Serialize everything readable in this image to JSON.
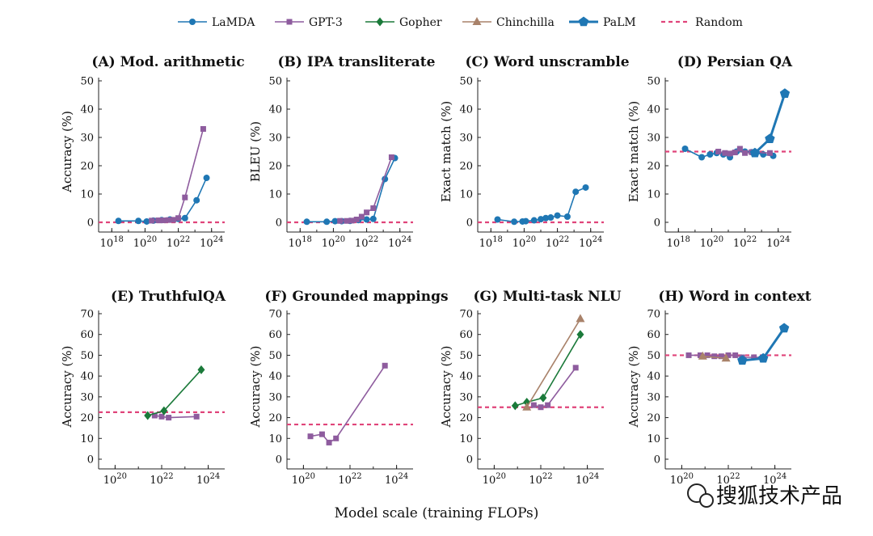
{
  "legend": [
    {
      "name": "LaMDA",
      "color": "#1f77b4",
      "marker": "circle"
    },
    {
      "name": "GPT-3",
      "color": "#8e5c9e",
      "marker": "square"
    },
    {
      "name": "Gopher",
      "color": "#1b7a3a",
      "marker": "diamond"
    },
    {
      "name": "Chinchilla",
      "color": "#a9826a",
      "marker": "triangle"
    },
    {
      "name": "PaLM",
      "color": "#1f77b4",
      "marker": "pentagon"
    },
    {
      "name": "Random",
      "color": "#e0447a",
      "marker": "dashed-line"
    }
  ],
  "xlabel": "Model scale (training FLOPs)",
  "watermark": "搜狐技术产品",
  "chart_data": [
    {
      "id": "A",
      "type": "line",
      "title": "(A) Mod. arithmetic",
      "ylabel": "Accuracy (%)",
      "ylim": [
        0,
        50
      ],
      "yticks": [
        0,
        10,
        20,
        30,
        40,
        50
      ],
      "xlim_log10": [
        17.5,
        24.5
      ],
      "xticks_log10": [
        18,
        20,
        22,
        24
      ],
      "random": 0,
      "series": [
        {
          "name": "LaMDA",
          "x": [
            18.4,
            19.6,
            20.1,
            20.5,
            21,
            21.5,
            22,
            22.4,
            23.1,
            23.7
          ],
          "y": [
            0.5,
            0.5,
            0.3,
            0.6,
            0.8,
            1,
            1.2,
            1.5,
            7.8,
            15.7
          ]
        },
        {
          "name": "GPT-3",
          "x": [
            20.4,
            20.8,
            21.1,
            21.4,
            21.7,
            22,
            22.4,
            23.5
          ],
          "y": [
            0.6,
            0.7,
            0.7,
            0.8,
            0.9,
            1.5,
            8.8,
            33
          ]
        }
      ]
    },
    {
      "id": "B",
      "type": "line",
      "title": "(B) IPA transliterate",
      "ylabel": "BLEU (%)",
      "ylim": [
        0,
        50
      ],
      "yticks": [
        0,
        10,
        20,
        30,
        40,
        50
      ],
      "xlim_log10": [
        17.5,
        24.5
      ],
      "xticks_log10": [
        18,
        20,
        22,
        24
      ],
      "random": 0,
      "series": [
        {
          "name": "LaMDA",
          "x": [
            18.4,
            19.6,
            20.1,
            20.5,
            21,
            21.5,
            22,
            22.4,
            23.1,
            23.7
          ],
          "y": [
            0.2,
            0.2,
            0.4,
            0.4,
            0.5,
            0.8,
            1,
            1.2,
            15.3,
            22.7
          ]
        },
        {
          "name": "GPT-3",
          "x": [
            20.4,
            20.8,
            21.1,
            21.4,
            21.7,
            22,
            22.4,
            23.5
          ],
          "y": [
            0.5,
            0.5,
            0.6,
            1,
            2,
            3.5,
            5,
            23
          ]
        }
      ]
    },
    {
      "id": "C",
      "type": "line",
      "title": "(C) Word unscramble",
      "ylabel": "Exact match (%)",
      "ylim": [
        0,
        50
      ],
      "yticks": [
        0,
        10,
        20,
        30,
        40,
        50
      ],
      "xlim_log10": [
        17.5,
        24.5
      ],
      "xticks_log10": [
        18,
        20,
        22,
        24
      ],
      "random": 0,
      "series": [
        {
          "name": "LaMDA",
          "x": [
            18.4,
            19.4,
            19.9,
            20.1,
            20.6,
            21,
            21.3,
            21.6,
            22,
            22.6,
            23.1,
            23.7
          ],
          "y": [
            1,
            0.2,
            0.3,
            0.4,
            0.7,
            1.1,
            1.5,
            1.7,
            2.4,
            2,
            10.8,
            12.3
          ]
        }
      ]
    },
    {
      "id": "D",
      "type": "line",
      "title": "(D) Persian QA",
      "ylabel": "Exact match (%)",
      "ylim": [
        0,
        50
      ],
      "yticks": [
        0,
        10,
        20,
        30,
        40,
        50
      ],
      "xlim_log10": [
        17.5,
        24.5
      ],
      "xticks_log10": [
        18,
        20,
        22,
        24
      ],
      "random": 25,
      "series": [
        {
          "name": "LaMDA",
          "x": [
            18.4,
            19.4,
            19.9,
            20.3,
            20.7,
            21.1,
            21.5,
            22,
            22.4,
            23.1,
            23.7
          ],
          "y": [
            26,
            23,
            24,
            24.5,
            24,
            23,
            25,
            25,
            24.8,
            24,
            23.5
          ]
        },
        {
          "name": "GPT-3",
          "x": [
            20.4,
            20.8,
            21.1,
            21.4,
            21.7,
            22,
            22.4,
            23.5
          ],
          "y": [
            25,
            24.5,
            24.3,
            24.7,
            26,
            24.5,
            24.8,
            24.5
          ]
        },
        {
          "name": "PaLM",
          "x": [
            22.6,
            23.5,
            24.4
          ],
          "y": [
            24.5,
            29.5,
            45.5
          ]
        }
      ]
    },
    {
      "id": "E",
      "type": "line",
      "title": "(E) TruthfulQA",
      "ylabel": "Accuracy (%)",
      "ylim": [
        0,
        70
      ],
      "yticks": [
        0,
        10,
        20,
        30,
        40,
        50,
        60,
        70
      ],
      "xlim_log10": [
        19.5,
        24.5
      ],
      "xticks_log10": [
        20,
        22,
        24
      ],
      "random": 22.6,
      "series": [
        {
          "name": "GPT-3",
          "x": [
            21.7,
            22,
            22.3,
            23.5
          ],
          "y": [
            21,
            20.5,
            20,
            20.5
          ]
        },
        {
          "name": "Gopher",
          "x": [
            21.4,
            22.1,
            23.7
          ],
          "y": [
            21,
            23.3,
            43
          ]
        }
      ]
    },
    {
      "id": "F",
      "type": "line",
      "title": "(F) Grounded mappings",
      "ylabel": "Accuracy (%)",
      "ylim": [
        0,
        70
      ],
      "yticks": [
        0,
        10,
        20,
        30,
        40,
        50,
        60,
        70
      ],
      "xlim_log10": [
        19.5,
        24.5
      ],
      "xticks_log10": [
        20,
        22,
        24
      ],
      "random": 16.7,
      "series": [
        {
          "name": "GPT-3",
          "x": [
            20.3,
            20.8,
            21.1,
            21.4,
            23.5
          ],
          "y": [
            11,
            12,
            8,
            10,
            45
          ]
        }
      ]
    },
    {
      "id": "G",
      "type": "line",
      "title": "(G) Multi-task NLU",
      "ylabel": "Accuracy (%)",
      "ylim": [
        0,
        70
      ],
      "yticks": [
        0,
        10,
        20,
        30,
        40,
        50,
        60,
        70
      ],
      "xlim_log10": [
        19.5,
        24.5
      ],
      "xticks_log10": [
        20,
        22,
        24
      ],
      "random": 25,
      "series": [
        {
          "name": "GPT-3",
          "x": [
            21.7,
            22,
            22.3,
            23.5
          ],
          "y": [
            26,
            25,
            26,
            44
          ]
        },
        {
          "name": "Gopher",
          "x": [
            20.9,
            21.4,
            22.1,
            23.7
          ],
          "y": [
            25.7,
            27.4,
            29.5,
            60
          ]
        },
        {
          "name": "Chinchilla",
          "x": [
            21.4,
            23.7
          ],
          "y": [
            25,
            67.5
          ]
        }
      ]
    },
    {
      "id": "H",
      "type": "line",
      "title": "(H) Word in context",
      "ylabel": "Accuracy (%)",
      "ylim": [
        0,
        70
      ],
      "yticks": [
        0,
        10,
        20,
        30,
        40,
        50,
        60,
        70
      ],
      "xlim_log10": [
        19.5,
        24.5
      ],
      "xticks_log10": [
        20,
        22,
        24
      ],
      "random": 50,
      "series": [
        {
          "name": "GPT-3",
          "x": [
            20.3,
            20.8,
            21.1,
            21.4,
            21.7,
            22,
            22.3,
            22.6,
            23.1,
            23.5
          ],
          "y": [
            50,
            50,
            50,
            49.5,
            49.5,
            50,
            50,
            49,
            49,
            49
          ]
        },
        {
          "name": "Chinchilla",
          "x": [
            20.9,
            21.9
          ],
          "y": [
            49.5,
            48.5
          ]
        },
        {
          "name": "PaLM",
          "x": [
            22.6,
            23.5,
            24.4
          ],
          "y": [
            47.5,
            48.5,
            63
          ]
        }
      ]
    }
  ]
}
